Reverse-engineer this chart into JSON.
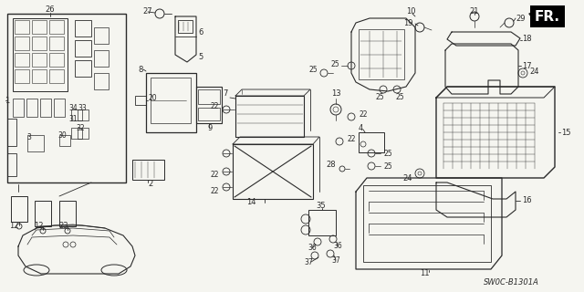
{
  "background": "#f5f5f0",
  "line_color": "#2a2a2a",
  "diagram_code": "SW0C-B1301A",
  "fr_label": "FR.",
  "figsize": [
    6.4,
    3.2
  ],
  "dpi": 100
}
